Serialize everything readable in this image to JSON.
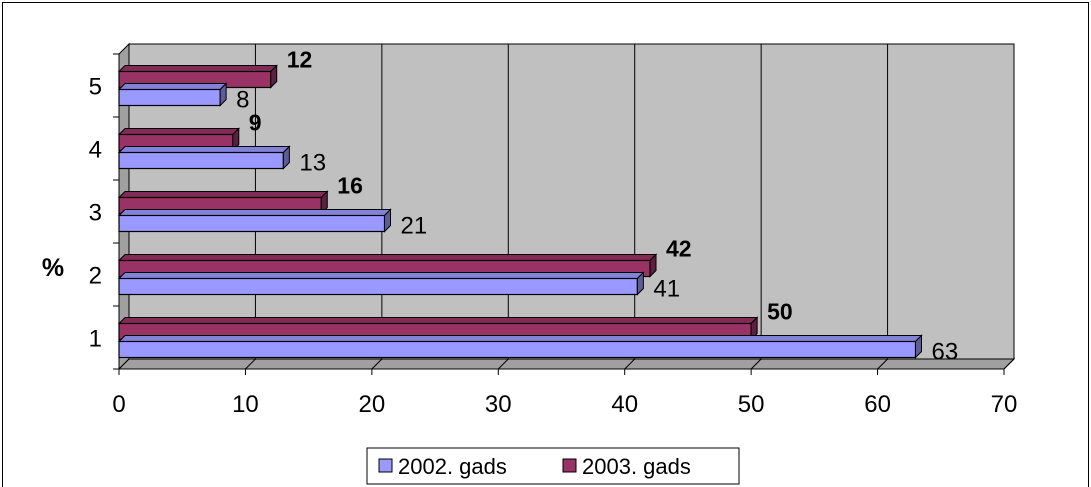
{
  "chart_data": {
    "type": "bar",
    "orientation": "horizontal",
    "three_d": true,
    "categories": [
      "1",
      "2",
      "3",
      "4",
      "5"
    ],
    "series": [
      {
        "name": "2002. gads",
        "values": [
          63,
          41,
          21,
          13,
          8
        ],
        "color": "#9999ff",
        "label_bold": false
      },
      {
        "name": "2003. gads",
        "values": [
          50,
          42,
          16,
          9,
          12
        ],
        "color": "#993366",
        "label_bold": true
      }
    ],
    "ylabel": "%",
    "xlim": [
      0,
      70
    ],
    "x_ticks": [
      "0",
      "10",
      "20",
      "30",
      "40",
      "50",
      "60",
      "70"
    ],
    "grid": true,
    "legend_position": "bottom",
    "wall_color": "#c0c0c0"
  }
}
